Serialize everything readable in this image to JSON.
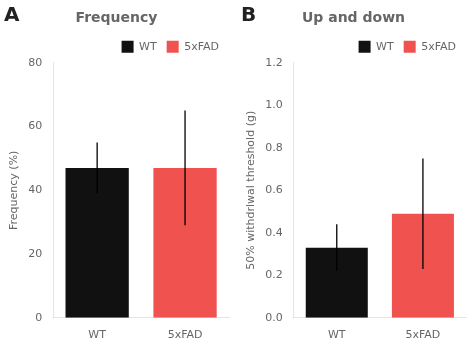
{
  "chart_data": [
    {
      "type": "bar",
      "annotation": "A",
      "title": "Frequency",
      "ylabel": "Frequency (%)",
      "categories": [
        "WT",
        "5xFAD"
      ],
      "values": [
        47.0,
        47.0
      ],
      "errors": [
        8.0,
        18.0
      ],
      "colors": [
        "#111111",
        "#f0524f"
      ],
      "ylim": [
        0,
        80
      ],
      "yticks": [
        0,
        20,
        40,
        60,
        80
      ],
      "grid": false,
      "legend": "upper right"
    },
    {
      "type": "bar",
      "annotation": "B",
      "title": "Up and down",
      "ylabel": "50% withdrlwal threshold (g)",
      "categories": [
        "WT",
        "5xFAD"
      ],
      "values": [
        0.33,
        0.49
      ],
      "errors": [
        0.11,
        0.26
      ],
      "colors": [
        "#111111",
        "#f0524f"
      ],
      "ylim": [
        0,
        1.2
      ],
      "yticks": [
        {
          "value": 0.0,
          "label": "0.0"
        },
        0.2,
        0.4,
        0.6,
        0.8,
        {
          "value": 1.0,
          "label": "1.0"
        },
        1.2
      ],
      "grid": false,
      "legend": "upper right"
    }
  ]
}
